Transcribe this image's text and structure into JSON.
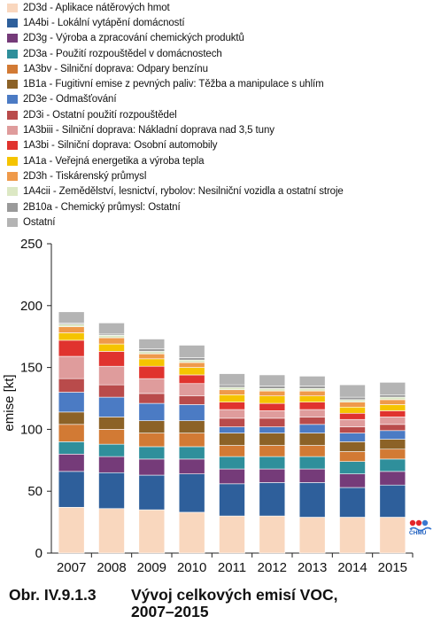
{
  "chart_data": {
    "type": "bar",
    "stacked": true,
    "categories": [
      "2007",
      "2008",
      "2009",
      "2010",
      "2011",
      "2012",
      "2013",
      "2014",
      "2015"
    ],
    "ylabel": "emise [kt]",
    "xlabel": "",
    "ylim": [
      0,
      250
    ],
    "yticks": [
      0,
      50,
      100,
      150,
      200,
      250
    ],
    "grid": false,
    "legend_position": "top",
    "series": [
      {
        "name": "2D3d - Aplikace nátěrových hmot",
        "color": "#f9d7be",
        "values": [
          37,
          36,
          35,
          33,
          30,
          30,
          29,
          29,
          29
        ]
      },
      {
        "name": "1A4bi - Lokální vytápění domácností",
        "color": "#2e5f9b",
        "values": [
          29,
          29,
          28,
          31,
          26,
          27,
          28,
          24,
          26
        ]
      },
      {
        "name": "2D3g - Výroba a zpracování chemických produktů",
        "color": "#753b79",
        "values": [
          14,
          13,
          13,
          12,
          12,
          11,
          11,
          11,
          11
        ]
      },
      {
        "name": "2D3a - Použití rozpouštědel v domácnostech",
        "color": "#2f8f9b",
        "values": [
          10,
          10,
          10,
          10,
          10,
          10,
          10,
          10,
          10
        ]
      },
      {
        "name": "1A3bv - Silniční doprava: Odpary benzínu",
        "color": "#d27a34",
        "values": [
          14,
          12,
          11,
          11,
          9,
          9,
          9,
          8,
          8
        ]
      },
      {
        "name": "1B1a - Fugitivní emise z pevných paliv: Těžba a manipulace s uhlím",
        "color": "#8c6227",
        "values": [
          10,
          10,
          10,
          10,
          10,
          10,
          10,
          8,
          8
        ]
      },
      {
        "name": "2D3e - Odmašťování",
        "color": "#4b7bc4",
        "values": [
          16,
          16,
          14,
          13,
          5,
          5,
          7,
          7,
          7
        ]
      },
      {
        "name": "2D3i - Ostatní použití rozpouštědel",
        "color": "#b94b4b",
        "values": [
          11,
          10,
          8,
          7,
          7,
          7,
          6,
          5,
          5
        ]
      },
      {
        "name": "1A3biii - Silniční doprava: Nákladní doprava nad 3,5 tuny",
        "color": "#df9c9c",
        "values": [
          18,
          15,
          12,
          10,
          7,
          6,
          6,
          6,
          6
        ]
      },
      {
        "name": "1A3bi - Silniční doprava: Osobní automobily",
        "color": "#e0332e",
        "values": [
          13,
          12,
          10,
          7,
          6,
          6,
          6,
          5,
          5
        ]
      },
      {
        "name": "1A1a - Veřejná energetika a výroba tepla",
        "color": "#f5c400",
        "values": [
          6,
          6,
          6,
          6,
          6,
          6,
          5,
          5,
          5
        ]
      },
      {
        "name": "2D3h - Tiskárenský průmysl",
        "color": "#ef9a4a",
        "values": [
          5,
          5,
          4,
          4,
          4,
          4,
          4,
          4,
          4
        ]
      },
      {
        "name": "1A4cii - Zemědělství, lesnictví, rybolov: Nesilniční vozidla a ostatní stroje",
        "color": "#dce8c4",
        "values": [
          2,
          2,
          2,
          2,
          2,
          2,
          2,
          2,
          2
        ]
      },
      {
        "name": "2B10a - Chemický průmysl: Ostatní",
        "color": "#9a9a9a",
        "values": [
          1,
          1,
          2,
          2,
          2,
          2,
          2,
          2,
          2
        ]
      },
      {
        "name": "Ostatní",
        "color": "#b4b4b4",
        "values": [
          9,
          9,
          8,
          10,
          9,
          9,
          8,
          10,
          10
        ]
      }
    ]
  },
  "caption": {
    "label": "Obr. IV.9.1.3",
    "title_line1": "Vývoj celkových emisí VOC,",
    "title_line2": "2007–2015"
  },
  "logo": {
    "text": "ČHMÚ",
    "icon": "chmu-logo-icon"
  }
}
